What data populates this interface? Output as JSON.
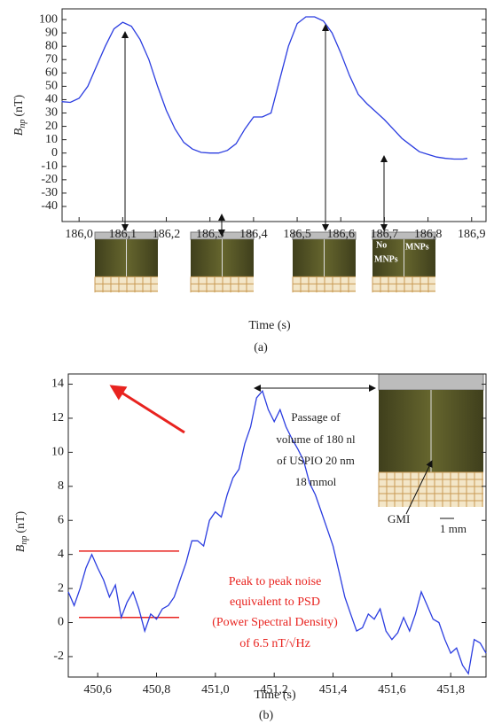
{
  "chart_data": [
    {
      "type": "line",
      "x_label": "Time (s)",
      "y_label": {
        "main": "B",
        "sub": "np",
        "unit": "(nT)"
      },
      "caption": "(a)",
      "xlim": [
        185.961,
        186.933
      ],
      "ylim": [
        -51.3,
        108
      ],
      "xticks": [
        {
          "value": 186.0,
          "label": "186,0"
        },
        {
          "value": 186.1,
          "label": "186,1"
        },
        {
          "value": 186.2,
          "label": "186,2"
        },
        {
          "value": 186.3,
          "label": "186,3"
        },
        {
          "value": 186.4,
          "label": "186,4"
        },
        {
          "value": 186.5,
          "label": "186,5"
        },
        {
          "value": 186.6,
          "label": "186,6"
        },
        {
          "value": 186.7,
          "label": "186,7"
        },
        {
          "value": 186.8,
          "label": "186,8"
        },
        {
          "value": 186.9,
          "label": "186,9"
        }
      ],
      "yticks": [
        -40,
        -30,
        -20,
        -10,
        0,
        10,
        20,
        30,
        40,
        50,
        60,
        70,
        80,
        90,
        100
      ],
      "x": [
        185.96,
        185.98,
        186.0,
        186.02,
        186.04,
        186.06,
        186.08,
        186.1,
        186.12,
        186.14,
        186.16,
        186.18,
        186.2,
        186.22,
        186.24,
        186.26,
        186.28,
        186.3,
        186.32,
        186.34,
        186.36,
        186.38,
        186.4,
        186.42,
        186.44,
        186.46,
        186.48,
        186.5,
        186.52,
        186.54,
        186.56,
        186.58,
        186.6,
        186.62,
        186.64,
        186.66,
        186.68,
        186.7,
        186.72,
        186.74,
        186.76,
        186.78,
        186.8,
        186.82,
        186.84,
        186.86,
        186.88,
        186.89
      ],
      "series": [
        {
          "color": "#2b3de0",
          "values": [
            38.5,
            38,
            41,
            50,
            65,
            80,
            93,
            98,
            95,
            85,
            70,
            50,
            32,
            18,
            8,
            3,
            0.5,
            0,
            0,
            2,
            7,
            18,
            27,
            27,
            30,
            55,
            80,
            97,
            102,
            102,
            99,
            90,
            75,
            58,
            44,
            37,
            31,
            25,
            18,
            11,
            6,
            1,
            -1,
            -3,
            -4,
            -4.5,
            -4.5,
            -4
          ]
        }
      ],
      "annotations": [
        "No",
        "MNPs",
        "MNPs"
      ]
    },
    {
      "type": "line",
      "x_label": "Time (s)",
      "y_label": {
        "main": "B",
        "sub": "np",
        "unit": "(nT)"
      },
      "caption": "(b)",
      "xlim": [
        450.5,
        451.92
      ],
      "ylim": [
        -3.2,
        14.6
      ],
      "xticks": [
        {
          "value": 450.6,
          "label": "450,6"
        },
        {
          "value": 450.8,
          "label": "450,8"
        },
        {
          "value": 451.0,
          "label": "451,0"
        },
        {
          "value": 451.2,
          "label": "451,2"
        },
        {
          "value": 451.4,
          "label": "451,4"
        },
        {
          "value": 451.6,
          "label": "451,6"
        },
        {
          "value": 451.8,
          "label": "451,8"
        }
      ],
      "yticks": [
        -2,
        0,
        2,
        4,
        6,
        8,
        10,
        12,
        14
      ],
      "x": [
        450.5,
        450.52,
        450.54,
        450.56,
        450.58,
        450.6,
        450.62,
        450.64,
        450.66,
        450.68,
        450.7,
        450.72,
        450.74,
        450.76,
        450.78,
        450.8,
        450.82,
        450.84,
        450.86,
        450.88,
        450.9,
        450.92,
        450.94,
        450.96,
        450.98,
        451.0,
        451.02,
        451.04,
        451.06,
        451.08,
        451.1,
        451.12,
        451.14,
        451.16,
        451.18,
        451.2,
        451.22,
        451.24,
        451.26,
        451.28,
        451.3,
        451.32,
        451.34,
        451.36,
        451.38,
        451.4,
        451.42,
        451.44,
        451.46,
        451.48,
        451.5,
        451.52,
        451.54,
        451.56,
        451.58,
        451.6,
        451.62,
        451.64,
        451.66,
        451.68,
        451.7,
        451.72,
        451.74,
        451.76,
        451.78,
        451.8,
        451.82,
        451.84,
        451.86,
        451.88,
        451.9,
        451.92
      ],
      "series": [
        {
          "color": "#2b3de0",
          "values": [
            1.8,
            1.0,
            2.0,
            3.2,
            4.0,
            3.2,
            2.5,
            1.5,
            2.2,
            0.3,
            1.2,
            1.8,
            0.8,
            -0.5,
            0.5,
            0.2,
            0.8,
            1.0,
            1.5,
            2.5,
            3.5,
            4.8,
            4.8,
            4.5,
            6,
            6.5,
            6.2,
            7.5,
            8.5,
            9.0,
            10.5,
            11.5,
            13.2,
            13.6,
            12.5,
            11.8,
            12.5,
            11.5,
            10.8,
            10.2,
            9.5,
            8.2,
            7.5,
            6.5,
            5.5,
            4.5,
            3.0,
            1.5,
            0.5,
            -0.5,
            -0.3,
            0.5,
            0.2,
            0.8,
            -0.5,
            -1.0,
            -0.6,
            0.3,
            -0.5,
            0.5,
            1.8,
            1.0,
            0.2,
            0.0,
            -1.0,
            -1.8,
            -1.5,
            -2.5,
            -3.0,
            -1.0,
            -1.2,
            -1.8
          ]
        }
      ],
      "reference_lines": {
        "color": "#e8231f",
        "values": [
          4.2,
          0.3
        ]
      },
      "annotations": [
        "Passage of",
        "volume of 180 nl",
        "of USPIO 20 nm",
        "18 mmol",
        "GMI",
        "1 mm"
      ],
      "red_annotations": [
        "Peak to peak noise",
        "equivalent to PSD",
        "(Power Spectral Density)",
        "of 6.5 nT/√Hz"
      ]
    }
  ]
}
